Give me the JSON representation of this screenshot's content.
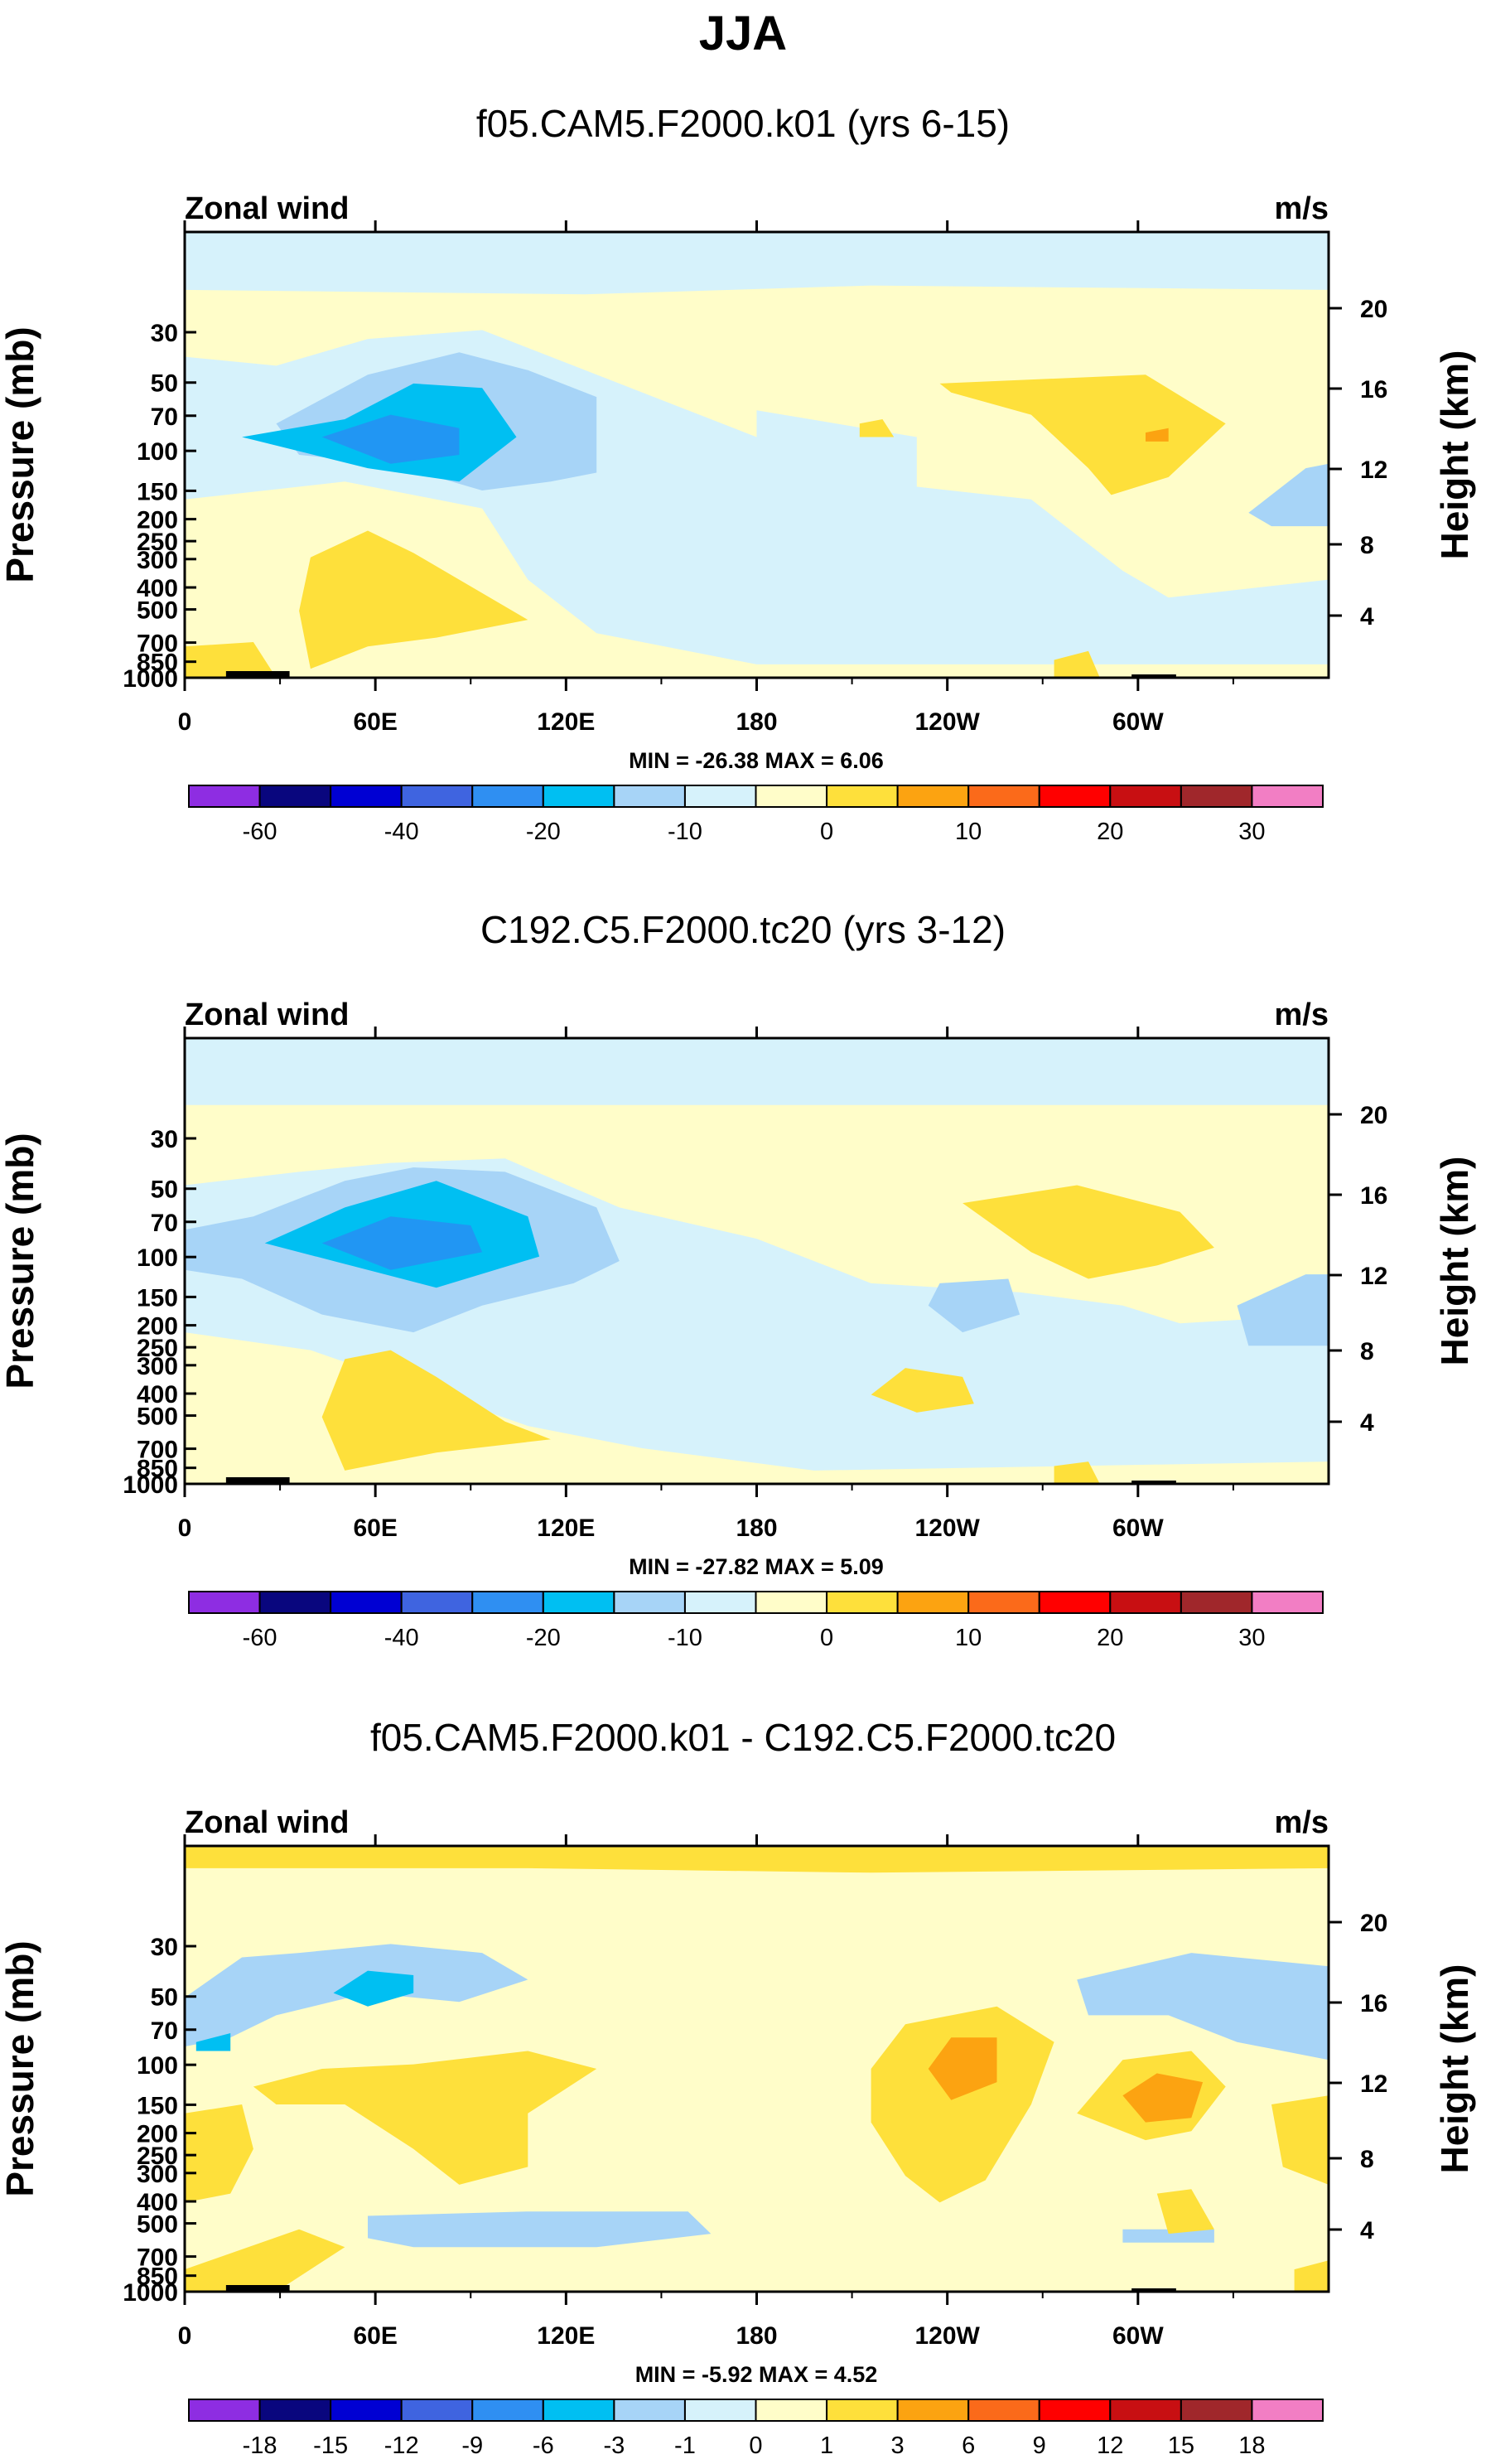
{
  "figure_title": "JJA",
  "colors": {
    "c_n3": "#f0f9fb",
    "c_n2": "#d6f2fb",
    "c_n1": "#a7d4f7",
    "c_neg_core": "#00bff2",
    "c_neg_deep": "#2196f3",
    "c_pos1": "#fffdc9",
    "c_pos2": "#fee03b",
    "c_pos3": "#fca311",
    "c_pos4": "#fb6a1a",
    "c_pink": "#f27ec4",
    "topo": "#000000"
  },
  "chart_data": [
    {
      "type": "heatmap",
      "title": "f05.CAM5.F2000.k01 (yrs 6-15)",
      "variable_label": "Zonal wind",
      "units_label": "m/s",
      "ylabel": "Pressure (mb)",
      "y2label": "Height (km)",
      "y_ticks": [
        "30",
        "50",
        "70",
        "100",
        "150",
        "200",
        "250",
        "300",
        "400",
        "500",
        "700",
        "850",
        "1000"
      ],
      "y2_ticks": [
        "20",
        "16",
        "12",
        "8",
        "4"
      ],
      "x_ticks": [
        "0",
        "60E",
        "120E",
        "180",
        "120W",
        "60W"
      ],
      "xlim": [
        0,
        360
      ],
      "stats": "MIN = -26.38  MAX =   6.06",
      "min": -26.38,
      "max": 6.06,
      "colorbar": {
        "colors": [
          "#8e2de2",
          "#09067e",
          "#0000d3",
          "#3f64e0",
          "#2f8ff2",
          "#00bff2",
          "#a7d4f7",
          "#d6f2fb",
          "#fffdc9",
          "#fee03b",
          "#fca311",
          "#fb6a1a",
          "#ff0000",
          "#c80f12",
          "#a0272b",
          "#f27ec4"
        ],
        "labels": [
          "-60",
          "-40",
          "-20",
          "-10",
          "0",
          "10",
          "20",
          "30"
        ]
      }
    },
    {
      "type": "heatmap",
      "title": "C192.C5.F2000.tc20 (yrs 3-12)",
      "variable_label": "Zonal wind",
      "units_label": "m/s",
      "ylabel": "Pressure (mb)",
      "y2label": "Height (km)",
      "y_ticks": [
        "30",
        "50",
        "70",
        "100",
        "150",
        "200",
        "250",
        "300",
        "400",
        "500",
        "700",
        "850",
        "1000"
      ],
      "y2_ticks": [
        "20",
        "16",
        "12",
        "8",
        "4"
      ],
      "x_ticks": [
        "0",
        "60E",
        "120E",
        "180",
        "120W",
        "60W"
      ],
      "xlim": [
        0,
        360
      ],
      "stats": "MIN = -27.82  MAX =   5.09",
      "min": -27.82,
      "max": 5.09,
      "colorbar": {
        "colors": [
          "#8e2de2",
          "#09067e",
          "#0000d3",
          "#3f64e0",
          "#2f8ff2",
          "#00bff2",
          "#a7d4f7",
          "#d6f2fb",
          "#fffdc9",
          "#fee03b",
          "#fca311",
          "#fb6a1a",
          "#ff0000",
          "#c80f12",
          "#a0272b",
          "#f27ec4"
        ],
        "labels": [
          "-60",
          "-40",
          "-20",
          "-10",
          "0",
          "10",
          "20",
          "30"
        ]
      }
    },
    {
      "type": "heatmap",
      "title": "f05.CAM5.F2000.k01 - C192.C5.F2000.tc20",
      "variable_label": "Zonal wind",
      "units_label": "m/s",
      "ylabel": "Pressure (mb)",
      "y2label": "Height (km)",
      "y_ticks": [
        "30",
        "50",
        "70",
        "100",
        "150",
        "200",
        "250",
        "300",
        "400",
        "500",
        "700",
        "850",
        "1000"
      ],
      "y2_ticks": [
        "20",
        "16",
        "12",
        "8",
        "4"
      ],
      "x_ticks": [
        "0",
        "60E",
        "120E",
        "180",
        "120W",
        "60W"
      ],
      "xlim": [
        0,
        360
      ],
      "stats": "MIN =  -5.92  MAX =   4.52",
      "min": -5.92,
      "max": 4.52,
      "colorbar": {
        "colors": [
          "#8e2de2",
          "#09067e",
          "#0000d3",
          "#3f64e0",
          "#2f8ff2",
          "#00bff2",
          "#a7d4f7",
          "#d6f2fb",
          "#fffdc9",
          "#fee03b",
          "#fca311",
          "#fb6a1a",
          "#ff0000",
          "#c80f12",
          "#a0272b",
          "#f27ec4"
        ],
        "labels": [
          "-18",
          "-15",
          "-12",
          "-9",
          "-6",
          "-3",
          "-1",
          "0",
          "1",
          "3",
          "6",
          "9",
          "12",
          "15",
          "18"
        ]
      }
    }
  ]
}
